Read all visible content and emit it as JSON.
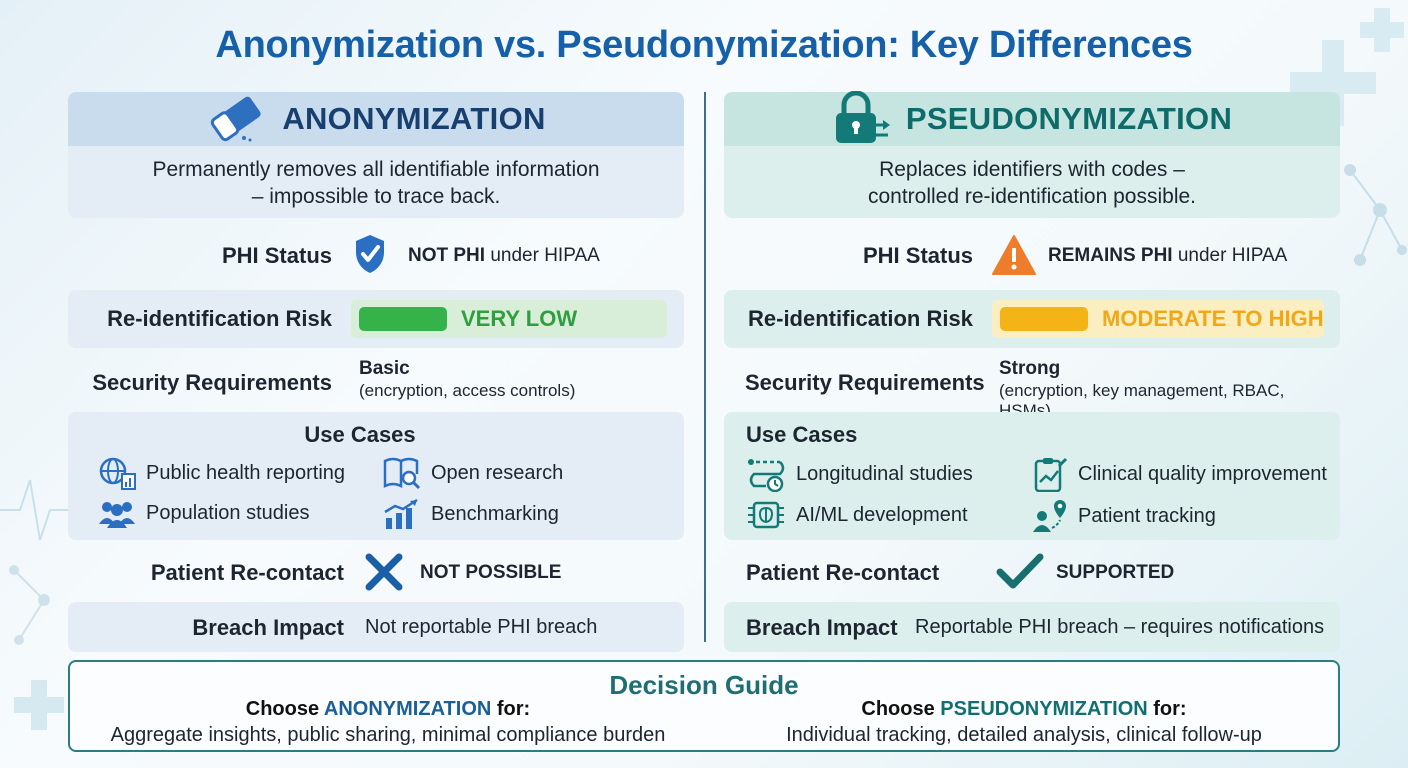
{
  "title": "Anonymization vs. Pseudonymization: Key Differences",
  "colors": {
    "title": "#1560a8",
    "anon_accent": "#17406f",
    "pseudo_accent": "#0f6a6a",
    "low_risk": "#36b24a",
    "high_risk": "#f4b418",
    "cross": "#1b5fa8",
    "check": "#17706f"
  },
  "anonymization": {
    "heading": "ANONYMIZATION",
    "icon": "eraser-icon",
    "description_line1": "Permanently removes all identifiable information",
    "description_line2": "– impossible to trace back.",
    "phi_label": "PHI Status",
    "phi_icon": "shield-check-icon",
    "phi_value_bold": "NOT PHI",
    "phi_value_rest": " under HIPAA",
    "risk_label": "Re-identification Risk",
    "risk_value": "VERY LOW",
    "security_label": "Security Requirements",
    "security_level": "Basic",
    "security_detail": "(encryption, access controls)",
    "use_cases_title": "Use Cases",
    "use_cases": [
      {
        "label": "Public health reporting",
        "icon": "globe-chart-icon"
      },
      {
        "label": "Open research",
        "icon": "book-magnifier-icon"
      },
      {
        "label": "Population studies",
        "icon": "people-group-icon"
      },
      {
        "label": "Benchmarking",
        "icon": "bar-chart-trend-icon"
      }
    ],
    "recontact_label": "Patient Re-contact",
    "recontact_icon": "cross-x-icon",
    "recontact_value": "NOT POSSIBLE",
    "breach_label": "Breach Impact",
    "breach_value": "Not reportable PHI breach"
  },
  "pseudonymization": {
    "heading": "PSEUDONYMIZATION",
    "icon": "lock-swap-icon",
    "description_line1": "Replaces identifiers with codes –",
    "description_line2": "controlled re-identification possible.",
    "phi_label": "PHI Status",
    "phi_icon": "warning-triangle-icon",
    "phi_value_bold": "REMAINS PHI",
    "phi_value_rest": " under HIPAA",
    "risk_label": "Re-identification Risk",
    "risk_value": "MODERATE TO HIGH",
    "security_label": "Security Requirements",
    "security_level": "Strong",
    "security_detail": "(encryption, key management, RBAC, HSMs)",
    "use_cases_title": "Use Cases",
    "use_cases": [
      {
        "label": "Longitudinal studies",
        "icon": "timeline-icon"
      },
      {
        "label": "Clinical quality improvement",
        "icon": "clipboard-chart-icon"
      },
      {
        "label": "AI/ML development",
        "icon": "chip-brain-icon"
      },
      {
        "label": "Patient tracking",
        "icon": "person-location-icon"
      }
    ],
    "recontact_label": "Patient Re-contact",
    "recontact_icon": "checkmark-icon",
    "recontact_value": "SUPPORTED",
    "breach_label": "Breach Impact",
    "breach_value": "Reportable PHI breach – requires notifications"
  },
  "decision_guide": {
    "title": "Decision Guide",
    "choose_prefix": "Choose ",
    "choose_suffix": " for:",
    "anon_keyword": "ANONYMIZATION",
    "anon_detail": "Aggregate insights, public sharing, minimal compliance burden",
    "pseudo_keyword": "PSEUDONYMIZATION",
    "pseudo_detail": "Individual tracking, detailed analysis, clinical follow-up"
  }
}
